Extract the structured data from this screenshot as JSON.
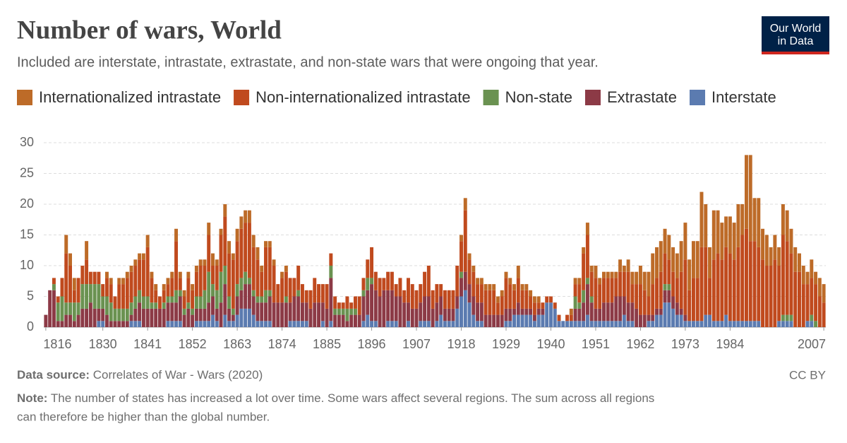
{
  "chart_data": {
    "type": "stacked-bar",
    "title": "Number of wars, World",
    "subtitle": "Included are interstate, intrastate, extrastate, and non-state wars that were ongoing that year.",
    "logo": [
      "Our World",
      "in Data"
    ],
    "source_label": "Data source:",
    "source": "Correlates of War - Wars (2020)",
    "license": "CC BY",
    "note_label": "Note:",
    "note": [
      "The number of states has increased a lot over time. Some wars affect several regions. The sum across all regions",
      "can therefore be higher than the global number."
    ],
    "ylim": [
      0,
      30
    ],
    "yticks": [
      0,
      5,
      10,
      15,
      20,
      25,
      30
    ],
    "grid": true,
    "xlim": [
      1815.5,
      2007.5
    ],
    "xticks": [
      1816,
      1830,
      1841,
      1852,
      1863,
      1874,
      1885,
      1896,
      1907,
      1918,
      1929,
      1940,
      1951,
      1962,
      1973,
      1984,
      2007
    ],
    "x": [
      1816,
      1817,
      1818,
      1819,
      1820,
      1821,
      1822,
      1823,
      1824,
      1825,
      1826,
      1827,
      1828,
      1829,
      1830,
      1831,
      1832,
      1833,
      1834,
      1835,
      1836,
      1837,
      1838,
      1839,
      1840,
      1841,
      1842,
      1843,
      1844,
      1845,
      1846,
      1847,
      1848,
      1849,
      1850,
      1851,
      1852,
      1853,
      1854,
      1855,
      1856,
      1857,
      1858,
      1859,
      1860,
      1861,
      1862,
      1863,
      1864,
      1865,
      1866,
      1867,
      1868,
      1869,
      1870,
      1871,
      1872,
      1873,
      1874,
      1875,
      1876,
      1877,
      1878,
      1879,
      1880,
      1881,
      1882,
      1883,
      1884,
      1885,
      1886,
      1887,
      1888,
      1889,
      1890,
      1891,
      1892,
      1893,
      1894,
      1895,
      1896,
      1897,
      1898,
      1899,
      1900,
      1901,
      1902,
      1903,
      1904,
      1905,
      1906,
      1907,
      1908,
      1909,
      1910,
      1911,
      1912,
      1913,
      1914,
      1915,
      1916,
      1917,
      1918,
      1919,
      1920,
      1921,
      1922,
      1923,
      1924,
      1925,
      1926,
      1927,
      1928,
      1929,
      1930,
      1931,
      1932,
      1933,
      1934,
      1935,
      1936,
      1937,
      1938,
      1939,
      1940,
      1941,
      1942,
      1943,
      1944,
      1945,
      1946,
      1947,
      1948,
      1949,
      1950,
      1951,
      1952,
      1953,
      1954,
      1955,
      1956,
      1957,
      1958,
      1959,
      1960,
      1961,
      1962,
      1963,
      1964,
      1965,
      1966,
      1967,
      1968,
      1969,
      1970,
      1971,
      1972,
      1973,
      1974,
      1975,
      1976,
      1977,
      1978,
      1979,
      1980,
      1981,
      1982,
      1983,
      1984,
      1985,
      1986,
      1987,
      1988,
      1989,
      1990,
      1991,
      1992,
      1993,
      1994,
      1995,
      1996,
      1997,
      1998,
      1999,
      2000,
      2001,
      2002,
      2003,
      2004,
      2005,
      2006,
      2007
    ],
    "series": [
      {
        "name": "Internationalized intrastate",
        "color": "#bd6b28",
        "values": [
          0,
          0,
          0,
          0,
          0,
          3,
          2,
          2,
          0,
          0,
          3,
          0,
          0,
          0,
          0,
          1,
          1,
          0,
          1,
          1,
          1,
          1,
          1,
          1,
          1,
          2,
          1,
          1,
          0,
          1,
          1,
          1,
          2,
          1,
          1,
          1,
          1,
          1,
          1,
          1,
          2,
          2,
          1,
          1,
          2,
          2,
          1,
          2,
          2,
          2,
          2,
          2,
          2,
          1,
          1,
          1,
          1,
          0,
          1,
          1,
          0,
          0,
          0,
          0,
          0,
          0,
          0,
          0,
          0,
          0,
          0,
          0,
          0,
          0,
          0,
          0,
          0,
          0,
          0,
          0,
          0,
          0,
          0,
          0,
          0,
          0,
          0,
          0,
          0,
          0,
          0,
          0,
          0,
          0,
          0,
          0,
          0,
          0,
          0,
          0,
          0,
          0,
          1,
          2,
          1,
          1,
          1,
          1,
          1,
          1,
          1,
          1,
          1,
          1,
          1,
          1,
          2,
          1,
          1,
          1,
          1,
          1,
          0,
          0,
          0,
          0,
          0,
          0,
          0,
          1,
          1,
          1,
          1,
          2,
          1,
          2,
          1,
          1,
          1,
          1,
          1,
          2,
          1,
          2,
          2,
          2,
          3,
          3,
          4,
          5,
          5,
          5,
          4,
          4,
          4,
          4,
          5,
          6,
          5,
          6,
          6,
          9,
          7,
          5,
          8,
          7,
          6,
          5,
          6,
          6,
          7,
          5,
          12,
          14,
          7,
          8,
          5,
          5,
          3,
          4,
          3,
          5,
          5,
          4,
          4,
          3,
          3,
          2,
          3,
          2,
          3,
          3
        ]
      },
      {
        "name": "Non-internationalized intrastate",
        "color": "#c04a1e",
        "values": [
          0,
          0,
          1,
          1,
          3,
          8,
          6,
          2,
          4,
          3,
          4,
          2,
          2,
          2,
          2,
          3,
          3,
          2,
          4,
          4,
          5,
          5,
          5,
          5,
          6,
          8,
          4,
          2,
          2,
          2,
          2,
          3,
          8,
          2,
          2,
          4,
          3,
          4,
          5,
          4,
          6,
          3,
          4,
          6,
          8,
          7,
          8,
          7,
          8,
          8,
          9,
          7,
          6,
          4,
          7,
          7,
          6,
          3,
          4,
          4,
          4,
          3,
          4,
          3,
          2,
          3,
          4,
          3,
          3,
          4,
          2,
          2,
          1,
          1,
          2,
          1,
          2,
          3,
          2,
          3,
          5,
          3,
          3,
          2,
          3,
          3,
          2,
          3,
          2,
          4,
          4,
          3,
          3,
          4,
          5,
          3,
          3,
          2,
          3,
          3,
          3,
          5,
          5,
          10,
          4,
          4,
          3,
          3,
          4,
          4,
          4,
          2,
          3,
          5,
          4,
          3,
          4,
          3,
          3,
          2,
          2,
          1,
          1,
          1,
          1,
          1,
          1,
          0,
          1,
          1,
          2,
          3,
          6,
          7,
          4,
          5,
          4,
          4,
          4,
          4,
          3,
          4,
          4,
          5,
          3,
          4,
          5,
          4,
          3,
          5,
          5,
          6,
          5,
          4,
          4,
          4,
          6,
          9,
          5,
          7,
          7,
          12,
          11,
          6,
          10,
          11,
          10,
          11,
          11,
          10,
          12,
          14,
          15,
          13,
          13,
          12,
          11,
          10,
          10,
          11,
          9,
          13,
          12,
          10,
          9,
          9,
          7,
          6,
          6,
          6,
          5,
          4
        ]
      },
      {
        "name": "Non-state",
        "color": "#6a9251",
        "values": [
          0,
          0,
          1,
          3,
          4,
          2,
          2,
          3,
          2,
          4,
          4,
          3,
          4,
          4,
          2,
          3,
          3,
          2,
          2,
          2,
          2,
          2,
          2,
          2,
          2,
          2,
          1,
          1,
          0,
          1,
          1,
          1,
          2,
          1,
          1,
          1,
          1,
          2,
          2,
          3,
          5,
          2,
          3,
          5,
          3,
          2,
          1,
          2,
          2,
          2,
          1,
          1,
          1,
          1,
          2,
          1,
          0,
          0,
          0,
          1,
          0,
          0,
          1,
          0,
          0,
          0,
          0,
          0,
          0,
          0,
          2,
          1,
          1,
          1,
          2,
          1,
          1,
          0,
          1,
          2,
          1,
          0,
          0,
          0,
          0,
          0,
          0,
          0,
          0,
          0,
          0,
          0,
          0,
          0,
          0,
          0,
          0,
          0,
          0,
          0,
          0,
          0,
          1,
          0,
          0,
          0,
          0,
          0,
          0,
          0,
          0,
          0,
          0,
          0,
          0,
          0,
          0,
          0,
          0,
          0,
          0,
          0,
          0,
          0,
          0,
          0,
          0,
          0,
          0,
          0,
          2,
          1,
          2,
          1,
          1,
          0,
          0,
          0,
          0,
          0,
          0,
          0,
          0,
          0,
          0,
          0,
          0,
          0,
          0,
          0,
          0,
          0,
          1,
          1,
          0,
          0,
          0,
          0,
          0,
          0,
          0,
          0,
          0,
          0,
          0,
          0,
          0,
          0,
          0,
          0,
          0,
          0,
          0,
          0,
          0,
          0,
          0,
          0,
          0,
          0,
          0,
          1,
          1,
          1,
          0,
          0,
          0,
          0,
          1,
          1,
          0,
          0
        ]
      },
      {
        "name": "Extrastate",
        "color": "#8c3a46",
        "values": [
          2,
          6,
          6,
          1,
          1,
          2,
          2,
          1,
          2,
          3,
          3,
          4,
          3,
          2,
          2,
          2,
          1,
          1,
          1,
          1,
          1,
          1,
          2,
          3,
          3,
          3,
          3,
          3,
          3,
          3,
          3,
          3,
          3,
          4,
          2,
          3,
          2,
          2,
          2,
          2,
          3,
          3,
          2,
          4,
          5,
          2,
          1,
          3,
          3,
          4,
          4,
          3,
          3,
          3,
          3,
          4,
          4,
          4,
          4,
          4,
          3,
          4,
          4,
          3,
          3,
          3,
          4,
          4,
          3,
          3,
          7,
          2,
          2,
          2,
          1,
          2,
          2,
          2,
          4,
          4,
          6,
          5,
          5,
          6,
          5,
          5,
          4,
          5,
          4,
          3,
          3,
          3,
          3,
          4,
          4,
          3,
          3,
          3,
          2,
          2,
          2,
          2,
          3,
          3,
          3,
          3,
          3,
          3,
          2,
          2,
          2,
          2,
          2,
          2,
          2,
          1,
          2,
          1,
          1,
          1,
          1,
          1,
          1,
          0,
          0,
          0,
          0,
          0,
          0,
          0,
          2,
          2,
          3,
          5,
          3,
          2,
          2,
          3,
          3,
          3,
          4,
          4,
          3,
          3,
          3,
          3,
          2,
          2,
          1,
          1,
          1,
          1,
          2,
          2,
          2,
          2,
          1,
          1,
          0,
          0,
          0,
          0,
          0,
          0,
          0,
          0,
          0,
          0,
          0,
          0,
          0,
          0,
          0,
          0,
          0,
          0,
          0,
          0,
          0,
          0,
          0,
          0,
          0,
          0,
          0,
          0,
          0,
          0,
          0,
          0,
          0,
          0
        ]
      },
      {
        "name": "Interstate",
        "color": "#5b7bb0",
        "values": [
          0,
          0,
          0,
          0,
          0,
          0,
          0,
          0,
          0,
          0,
          0,
          0,
          0,
          1,
          1,
          0,
          0,
          0,
          0,
          0,
          0,
          1,
          1,
          1,
          0,
          0,
          0,
          0,
          0,
          0,
          1,
          1,
          1,
          1,
          0,
          0,
          0,
          1,
          1,
          1,
          1,
          2,
          1,
          0,
          2,
          1,
          1,
          2,
          3,
          3,
          3,
          2,
          1,
          1,
          1,
          1,
          0,
          0,
          0,
          0,
          1,
          1,
          1,
          1,
          1,
          0,
          0,
          0,
          1,
          0,
          1,
          0,
          0,
          0,
          0,
          0,
          0,
          0,
          1,
          2,
          1,
          1,
          0,
          0,
          1,
          1,
          1,
          0,
          0,
          1,
          0,
          0,
          1,
          1,
          1,
          0,
          1,
          2,
          1,
          1,
          1,
          3,
          5,
          6,
          4,
          2,
          1,
          1,
          0,
          0,
          0,
          0,
          0,
          1,
          1,
          2,
          2,
          2,
          2,
          2,
          1,
          2,
          2,
          4,
          4,
          3,
          1,
          1,
          1,
          1,
          1,
          1,
          1,
          2,
          1,
          1,
          1,
          1,
          1,
          1,
          1,
          1,
          2,
          1,
          1,
          0,
          0,
          0,
          1,
          1,
          2,
          2,
          4,
          4,
          3,
          2,
          2,
          1,
          1,
          1,
          1,
          1,
          2,
          2,
          1,
          1,
          1,
          2,
          1,
          1,
          1,
          1,
          1,
          1,
          1,
          1,
          0,
          0,
          0,
          0,
          1,
          1,
          1,
          1,
          0,
          0,
          0,
          1,
          1,
          0,
          0,
          0
        ]
      }
    ]
  }
}
